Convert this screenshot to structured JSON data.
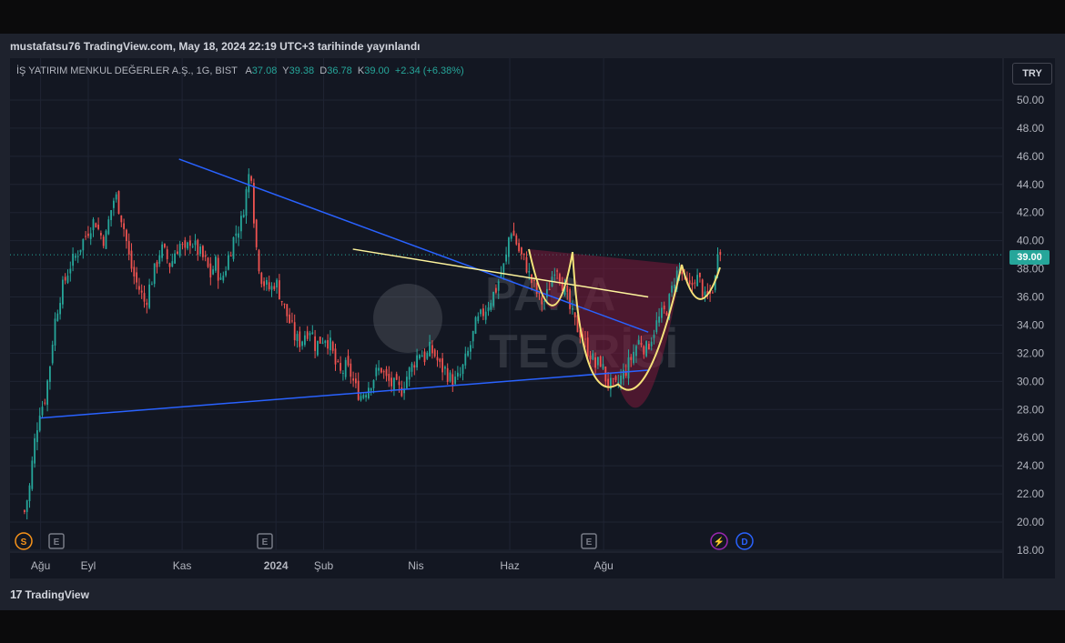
{
  "header": {
    "published": "mustafatsu76 TradingView.com, May 18, 2024 22:19 UTC+3 tarihinde yayınlandı"
  },
  "legend": {
    "symbol": "İŞ YATIRIM MENKUL DEĞERLER A.Ş., 1G, BIST",
    "a_label": "A",
    "a_value": "37.08",
    "y_label": "Y",
    "y_value": "39.38",
    "d_label": "D",
    "d_value": "36.78",
    "k_label": "K",
    "k_value": "39.00",
    "change": "+2.34 (+6.38%)"
  },
  "currency": "TRY",
  "last_price_label": "39.00",
  "watermark": {
    "line1": "PARA",
    "line2": "TEORİSİ"
  },
  "footer": {
    "brand": "TradingView"
  },
  "event_markers": [
    {
      "label": "S",
      "color": "#f7931a"
    },
    {
      "label": "E",
      "color": "#787b86"
    },
    {
      "label": "E",
      "color": "#787b86"
    },
    {
      "label": "E",
      "color": "#787b86"
    },
    {
      "label": "⚡",
      "color": "#9c27b0"
    },
    {
      "label": "D",
      "color": "#2962ff"
    }
  ],
  "colors": {
    "up": "#26a69a",
    "down": "#ef5350",
    "trend": "#2962ff",
    "resistance": "#fff59d",
    "cup": "#f5e27a",
    "cup_fill": "#7b1a3a",
    "bg": "#131722",
    "grid": "#1f2433"
  },
  "chart_data": {
    "type": "candlestick",
    "title": "",
    "ylim": [
      18,
      51
    ],
    "y_ticks": [
      "50.00",
      "48.00",
      "46.00",
      "44.00",
      "42.00",
      "40.00",
      "38.00",
      "36.00",
      "34.00",
      "32.00",
      "30.00",
      "28.00",
      "26.00",
      "24.00",
      "22.00",
      "20.00",
      "18.00"
    ],
    "x_ticks": [
      "Ağu",
      "Eyl",
      "Kas",
      "2024",
      "Şub",
      "Nis",
      "Haz",
      "Ağu"
    ],
    "last_close": 39.0,
    "trend_lines": [
      {
        "name": "upper",
        "from": {
          "x": "2023-10-30",
          "y": 45.8
        },
        "to": {
          "x": "2024-08-30",
          "y": 33.5
        }
      },
      {
        "name": "lower",
        "from": {
          "x": "2023-08-01",
          "y": 27.4
        },
        "to": {
          "x": "2024-08-30",
          "y": 30.8
        }
      },
      {
        "name": "neckline",
        "from": {
          "x": "2024-02-20",
          "y": 39.4
        },
        "to": {
          "x": "2024-08-30",
          "y": 36.0
        }
      }
    ],
    "path": [
      [
        0,
        20.8
      ],
      [
        6,
        21.6
      ],
      [
        11,
        20.4
      ],
      [
        16,
        20.6
      ],
      [
        22,
        22.5
      ],
      [
        27,
        25.5
      ],
      [
        33,
        28.0
      ],
      [
        38,
        28.5
      ],
      [
        44,
        31.0
      ],
      [
        49,
        34.0
      ],
      [
        55,
        36.0
      ],
      [
        60,
        37.0
      ],
      [
        66,
        38.2
      ],
      [
        72,
        38.8
      ],
      [
        77,
        39.5
      ],
      [
        83,
        40.3
      ],
      [
        88,
        41.0
      ],
      [
        94,
        41.5
      ],
      [
        99,
        40.5
      ],
      [
        105,
        40.0
      ],
      [
        110,
        41.8
      ],
      [
        116,
        43.3
      ],
      [
        121,
        42.2
      ],
      [
        127,
        40.5
      ],
      [
        132,
        38.5
      ],
      [
        138,
        37.2
      ],
      [
        143,
        36.5
      ],
      [
        149,
        35.5
      ],
      [
        154,
        36.8
      ],
      [
        160,
        38.0
      ],
      [
        166,
        39.5
      ],
      [
        171,
        39.0
      ],
      [
        177,
        38.2
      ],
      [
        182,
        39.3
      ],
      [
        188,
        39.8
      ],
      [
        193,
        39.0
      ],
      [
        199,
        40.2
      ],
      [
        204,
        39.5
      ],
      [
        210,
        39.0
      ],
      [
        215,
        38.5
      ],
      [
        221,
        37.5
      ],
      [
        226,
        38.5
      ],
      [
        232,
        37.0
      ],
      [
        237,
        38.0
      ],
      [
        243,
        39.5
      ],
      [
        248,
        40.5
      ],
      [
        254,
        41.2
      ],
      [
        260,
        43.5
      ],
      [
        265,
        45.5
      ],
      [
        270,
        40.0
      ],
      [
        276,
        37.5
      ],
      [
        281,
        36.8
      ],
      [
        287,
        36.5
      ],
      [
        292,
        37.2
      ],
      [
        298,
        36.0
      ],
      [
        303,
        35.0
      ],
      [
        309,
        34.0
      ],
      [
        314,
        33.0
      ],
      [
        320,
        32.8
      ],
      [
        325,
        33.5
      ],
      [
        331,
        33.8
      ],
      [
        336,
        32.5
      ],
      [
        342,
        33.0
      ],
      [
        347,
        33.2
      ],
      [
        353,
        32.5
      ],
      [
        358,
        31.2
      ],
      [
        364,
        30.5
      ],
      [
        369,
        31.0
      ],
      [
        375,
        30.5
      ],
      [
        380,
        29.5
      ],
      [
        386,
        29.0
      ],
      [
        391,
        29.4
      ],
      [
        397,
        30.0
      ],
      [
        402,
        30.5
      ],
      [
        408,
        31.0
      ],
      [
        413,
        30.2
      ],
      [
        419,
        29.8
      ],
      [
        424,
        29.6
      ],
      [
        430,
        29.3
      ],
      [
        435,
        30.2
      ],
      [
        440,
        30.8
      ],
      [
        446,
        31.6
      ],
      [
        451,
        32.2
      ],
      [
        457,
        31.6
      ],
      [
        462,
        32.3
      ],
      [
        468,
        31.8
      ],
      [
        473,
        31.0
      ],
      [
        479,
        30.8
      ],
      [
        484,
        30.2
      ],
      [
        490,
        30.0
      ],
      [
        495,
        30.4
      ],
      [
        501,
        31.5
      ],
      [
        506,
        32.5
      ],
      [
        512,
        34.0
      ],
      [
        517,
        34.5
      ],
      [
        523,
        35.2
      ],
      [
        528,
        35.8
      ],
      [
        534,
        36.5
      ],
      [
        539,
        37.5
      ],
      [
        545,
        38.5
      ],
      [
        550,
        41.0
      ],
      [
        556,
        40.0
      ],
      [
        561,
        39.0
      ],
      [
        567,
        38.4
      ],
      [
        572,
        37.3
      ],
      [
        578,
        36.5
      ],
      [
        583,
        35.6
      ],
      [
        589,
        35.8
      ],
      [
        594,
        37.0
      ],
      [
        600,
        38.5
      ],
      [
        605,
        37.5
      ],
      [
        611,
        36.2
      ],
      [
        616,
        35.0
      ],
      [
        622,
        34.0
      ],
      [
        627,
        33.5
      ],
      [
        633,
        32.5
      ],
      [
        638,
        32.0
      ],
      [
        644,
        31.0
      ],
      [
        649,
        31.5
      ],
      [
        655,
        30.2
      ],
      [
        660,
        29.7
      ],
      [
        666,
        29.6
      ],
      [
        671,
        30.2
      ],
      [
        677,
        30.8
      ],
      [
        682,
        31.5
      ],
      [
        688,
        32.5
      ],
      [
        693,
        33.0
      ],
      [
        699,
        32.2
      ],
      [
        704,
        33.0
      ],
      [
        710,
        34.0
      ],
      [
        715,
        34.6
      ],
      [
        721,
        35.0
      ],
      [
        726,
        36.0
      ],
      [
        731,
        37.5
      ],
      [
        737,
        38.0
      ],
      [
        742,
        37.0
      ],
      [
        748,
        36.5
      ],
      [
        753,
        37.5
      ],
      [
        759,
        37.0
      ],
      [
        764,
        35.8
      ],
      [
        770,
        36.2
      ],
      [
        775,
        37.2
      ],
      [
        780,
        39.0
      ]
    ]
  }
}
